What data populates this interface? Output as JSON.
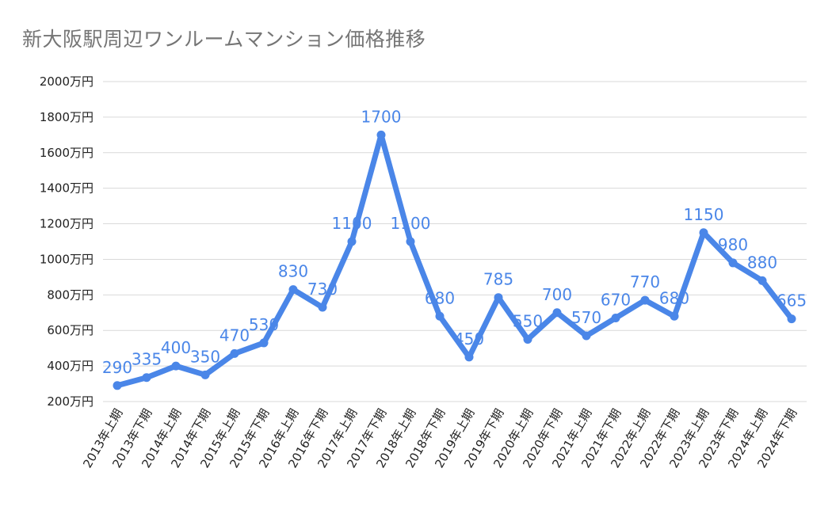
{
  "chart_data": {
    "type": "line",
    "title": "新大阪駅周辺ワンルームマンション価格推移",
    "xlabel": "",
    "ylabel": "",
    "ylim": [
      200,
      2000
    ],
    "yticks": [
      200,
      400,
      600,
      800,
      1000,
      1200,
      1400,
      1600,
      1800,
      2000
    ],
    "ytick_labels": [
      "200万円",
      "400万円",
      "600万円",
      "800万円",
      "1000万円",
      "1200万円",
      "1400万円",
      "1600万円",
      "1800万円",
      "2000万円"
    ],
    "grid": true,
    "legend": "none",
    "line_color": "#4a86e8",
    "categories": [
      "2013年上期",
      "2013年下期",
      "2014年上期",
      "2014年下期",
      "2015年上期",
      "2015年下期",
      "2016年上期",
      "2016年下期",
      "2017年上期",
      "2017年下期",
      "2018年上期",
      "2018年下期",
      "2019年上期",
      "2019年下期",
      "2020年上期",
      "2020年下期",
      "2021年上期",
      "2021年下期",
      "2022年上期",
      "2022年下期",
      "2023年上期",
      "2023年下期",
      "2024年上期",
      "2024年下期"
    ],
    "values": [
      290,
      335,
      400,
      350,
      470,
      530,
      830,
      730,
      1100,
      1700,
      1100,
      680,
      450,
      785,
      550,
      700,
      570,
      670,
      770,
      680,
      1150,
      980,
      880,
      665
    ]
  }
}
